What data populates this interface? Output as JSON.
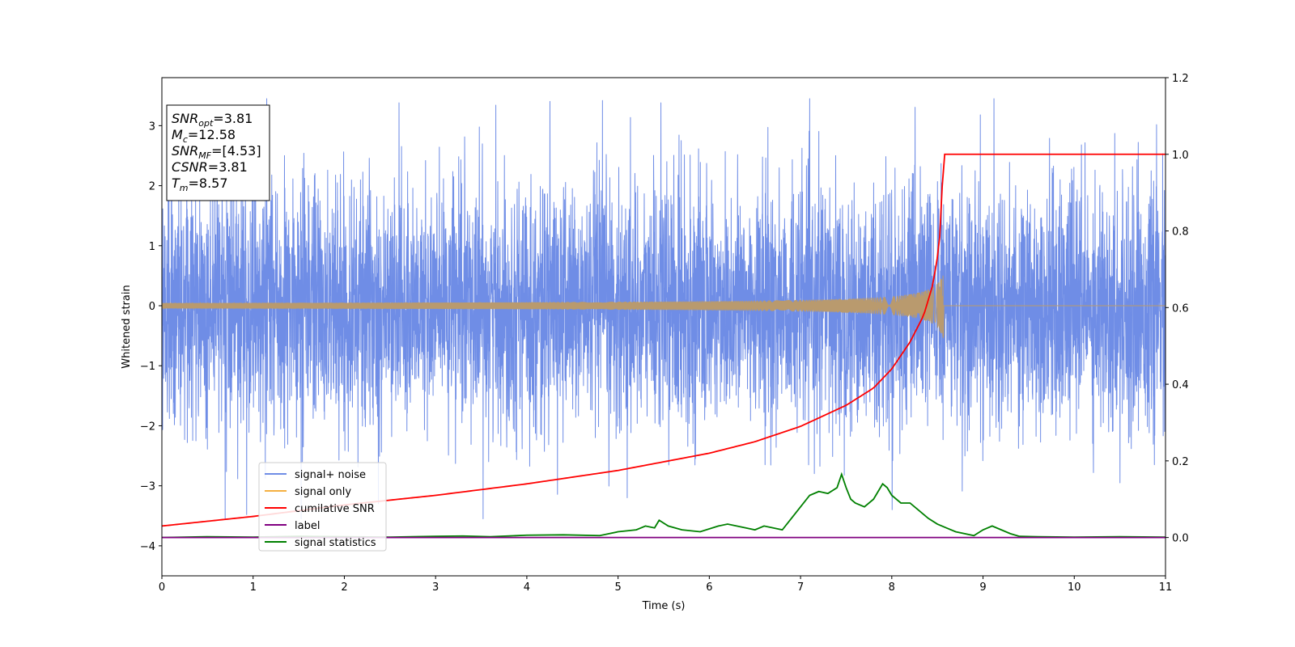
{
  "chart_data": {
    "type": "line",
    "xlabel": "Time (s)",
    "ylabel": "Whitened strain",
    "xlim": [
      0,
      11
    ],
    "ylim_left": [
      -4.5,
      3.8
    ],
    "ylim_right": [
      -0.1,
      1.2
    ],
    "x_ticks": [
      0,
      1,
      2,
      3,
      4,
      5,
      6,
      7,
      8,
      9,
      10,
      11
    ],
    "x_tick_labels": [
      "0",
      "1",
      "2",
      "3",
      "4",
      "5",
      "6",
      "7",
      "8",
      "9",
      "10",
      "11"
    ],
    "y_left_ticks": [
      -4,
      -3,
      -2,
      -1,
      0,
      1,
      2,
      3
    ],
    "y_left_tick_labels": [
      "−4",
      "−3",
      "−2",
      "−1",
      "0",
      "1",
      "2",
      "3"
    ],
    "y_right_ticks": [
      0.0,
      0.2,
      0.4,
      0.6,
      0.8,
      1.0,
      1.2
    ],
    "y_right_tick_labels": [
      "0.0",
      "0.2",
      "0.4",
      "0.6",
      "0.8",
      "1.0",
      "1.2"
    ],
    "grid": false,
    "legend_position": "lower-left",
    "colors": {
      "noise": "#6f8de6",
      "signal": "#f5b041",
      "signal_overlap": "#b99a6e",
      "csnr": "#ff0000",
      "label": "#800080",
      "stats": "#008000"
    },
    "annotation": {
      "lines": [
        {
          "base": "SNR",
          "sub": "opt",
          "value": "=3.81"
        },
        {
          "base": "M",
          "sub": "c",
          "value": "=12.58"
        },
        {
          "base": "SNR",
          "sub": "MF",
          "value": "=[4.53]"
        },
        {
          "base": "CSNR",
          "sub": "",
          "value": "=3.81"
        },
        {
          "base": "T",
          "sub": "m",
          "value": "=8.57"
        }
      ]
    },
    "series": [
      {
        "name": "signal+ noise",
        "axis": "left",
        "description_amplitude_sigma": 1.0,
        "x_range": [
          0,
          11
        ],
        "peak_values": [
          {
            "x": 4.83,
            "y": 3.42
          },
          {
            "x": 5.47,
            "y": 3.38
          },
          {
            "x": 2.6,
            "y": 3.38
          },
          {
            "x": 0.93,
            "y": -3.48
          },
          {
            "x": 5.1,
            "y": -3.2
          },
          {
            "x": 10.5,
            "y": -2.95
          }
        ]
      },
      {
        "name": "signal only",
        "axis": "left",
        "chirp_end_time": 8.57,
        "chirp_max_amplitude": 0.58
      },
      {
        "name": "cumilative SNR",
        "axis": "right",
        "x": [
          0,
          1,
          2,
          3,
          4,
          5,
          6,
          6.5,
          7,
          7.5,
          7.8,
          8.0,
          8.2,
          8.35,
          8.45,
          8.52,
          8.57,
          11
        ],
        "y": [
          0.03,
          0.055,
          0.085,
          0.11,
          0.14,
          0.175,
          0.22,
          0.25,
          0.29,
          0.345,
          0.39,
          0.44,
          0.51,
          0.58,
          0.66,
          0.76,
          1.0,
          1.0
        ]
      },
      {
        "name": "label",
        "axis": "right",
        "x": [
          0,
          11
        ],
        "y": [
          0,
          0
        ]
      },
      {
        "name": "signal statistics",
        "axis": "right",
        "x": [
          0,
          0.5,
          1,
          1.5,
          2,
          2.5,
          3,
          3.3,
          3.6,
          4,
          4.4,
          4.8,
          5,
          5.2,
          5.3,
          5.4,
          5.45,
          5.55,
          5.7,
          5.9,
          6.1,
          6.2,
          6.4,
          6.5,
          6.6,
          6.7,
          6.8,
          6.9,
          7.0,
          7.1,
          7.2,
          7.3,
          7.4,
          7.45,
          7.5,
          7.55,
          7.6,
          7.7,
          7.8,
          7.9,
          7.95,
          8.0,
          8.1,
          8.2,
          8.3,
          8.4,
          8.5,
          8.6,
          8.7,
          8.9,
          9.0,
          9.1,
          9.2,
          9.3,
          9.4,
          9.6,
          10,
          10.5,
          11
        ],
        "y": [
          0,
          0.002,
          0.001,
          0.003,
          0.002,
          0.001,
          0.003,
          0.004,
          0.002,
          0.006,
          0.007,
          0.005,
          0.015,
          0.02,
          0.03,
          0.025,
          0.045,
          0.03,
          0.02,
          0.015,
          0.03,
          0.035,
          0.025,
          0.02,
          0.03,
          0.025,
          0.02,
          0.05,
          0.08,
          0.11,
          0.12,
          0.115,
          0.13,
          0.165,
          0.13,
          0.1,
          0.09,
          0.08,
          0.1,
          0.14,
          0.13,
          0.11,
          0.09,
          0.09,
          0.07,
          0.05,
          0.035,
          0.025,
          0.015,
          0.005,
          0.02,
          0.03,
          0.02,
          0.01,
          0.003,
          0.002,
          0.001,
          0.002,
          0.001
        ]
      }
    ],
    "legend": [
      {
        "label": "signal+ noise",
        "color_key": "noise"
      },
      {
        "label": "signal only",
        "color_key": "signal"
      },
      {
        "label": "cumilative SNR",
        "color_key": "csnr"
      },
      {
        "label": "label",
        "color_key": "label"
      },
      {
        "label": "signal statistics",
        "color_key": "stats"
      }
    ]
  }
}
